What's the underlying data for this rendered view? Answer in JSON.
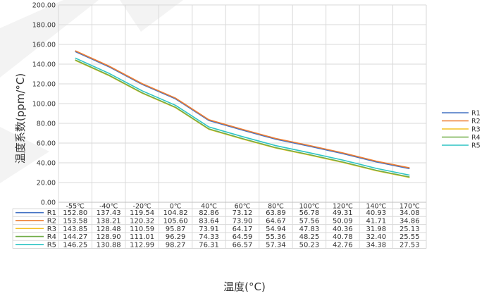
{
  "chart_data": {
    "type": "line",
    "xlabel": "温度(°C)",
    "ylabel": "温度系数(ppm/°C)",
    "ylim": [
      0,
      200
    ],
    "yticks": [
      "0.00",
      "20.00",
      "40.00",
      "60.00",
      "80.00",
      "100.00",
      "120.00",
      "140.00",
      "160.00",
      "180.00",
      "200.00"
    ],
    "categories": [
      "-55℃",
      "-40℃",
      "-20℃",
      "0℃",
      "40℃",
      "60℃",
      "80℃",
      "100℃",
      "120℃",
      "140℃",
      "170℃"
    ],
    "legend_position": "right",
    "grid": true,
    "series": [
      {
        "name": "R1",
        "color": "#4472c4",
        "values": [
          152.8,
          137.43,
          119.54,
          104.82,
          82.86,
          73.12,
          63.89,
          56.78,
          49.31,
          40.93,
          34.08
        ],
        "labels": [
          "152.80",
          "137.43",
          "119.54",
          "104.82",
          "82.86",
          "73.12",
          "63.89",
          "56.78",
          "49.31",
          "40.93",
          "34.08"
        ]
      },
      {
        "name": "R2",
        "color": "#ed7d31",
        "values": [
          153.58,
          138.21,
          120.32,
          105.6,
          83.64,
          73.9,
          64.67,
          57.56,
          50.09,
          41.71,
          34.86
        ],
        "labels": [
          "153.58",
          "138.21",
          "120.32",
          "105.60",
          "83.64",
          "73.90",
          "64.67",
          "57.56",
          "50.09",
          "41.71",
          "34.86"
        ]
      },
      {
        "name": "R3",
        "color": "#f4c020",
        "values": [
          143.85,
          128.48,
          110.59,
          95.87,
          73.91,
          64.17,
          54.94,
          47.83,
          40.36,
          31.98,
          25.13
        ],
        "labels": [
          "143.85",
          "128.48",
          "110.59",
          "95.87",
          "73.91",
          "64.17",
          "54.94",
          "47.83",
          "40.36",
          "31.98",
          "25.13"
        ]
      },
      {
        "name": "R4",
        "color": "#70ad47",
        "values": [
          144.27,
          128.9,
          111.01,
          96.29,
          74.33,
          64.59,
          55.36,
          48.25,
          40.78,
          32.4,
          25.55
        ],
        "labels": [
          "144.27",
          "128.90",
          "111.01",
          "96.29",
          "74.33",
          "64.59",
          "55.36",
          "48.25",
          "40.78",
          "32.40",
          "25.55"
        ]
      },
      {
        "name": "R5",
        "color": "#2ec4c4",
        "values": [
          146.25,
          130.88,
          112.99,
          98.27,
          76.31,
          66.57,
          57.34,
          50.23,
          42.76,
          34.38,
          27.53
        ],
        "labels": [
          "146.25",
          "130.88",
          "112.99",
          "98.27",
          "76.31",
          "66.57",
          "57.34",
          "50.23",
          "42.76",
          "34.38",
          "27.53"
        ]
      }
    ]
  }
}
